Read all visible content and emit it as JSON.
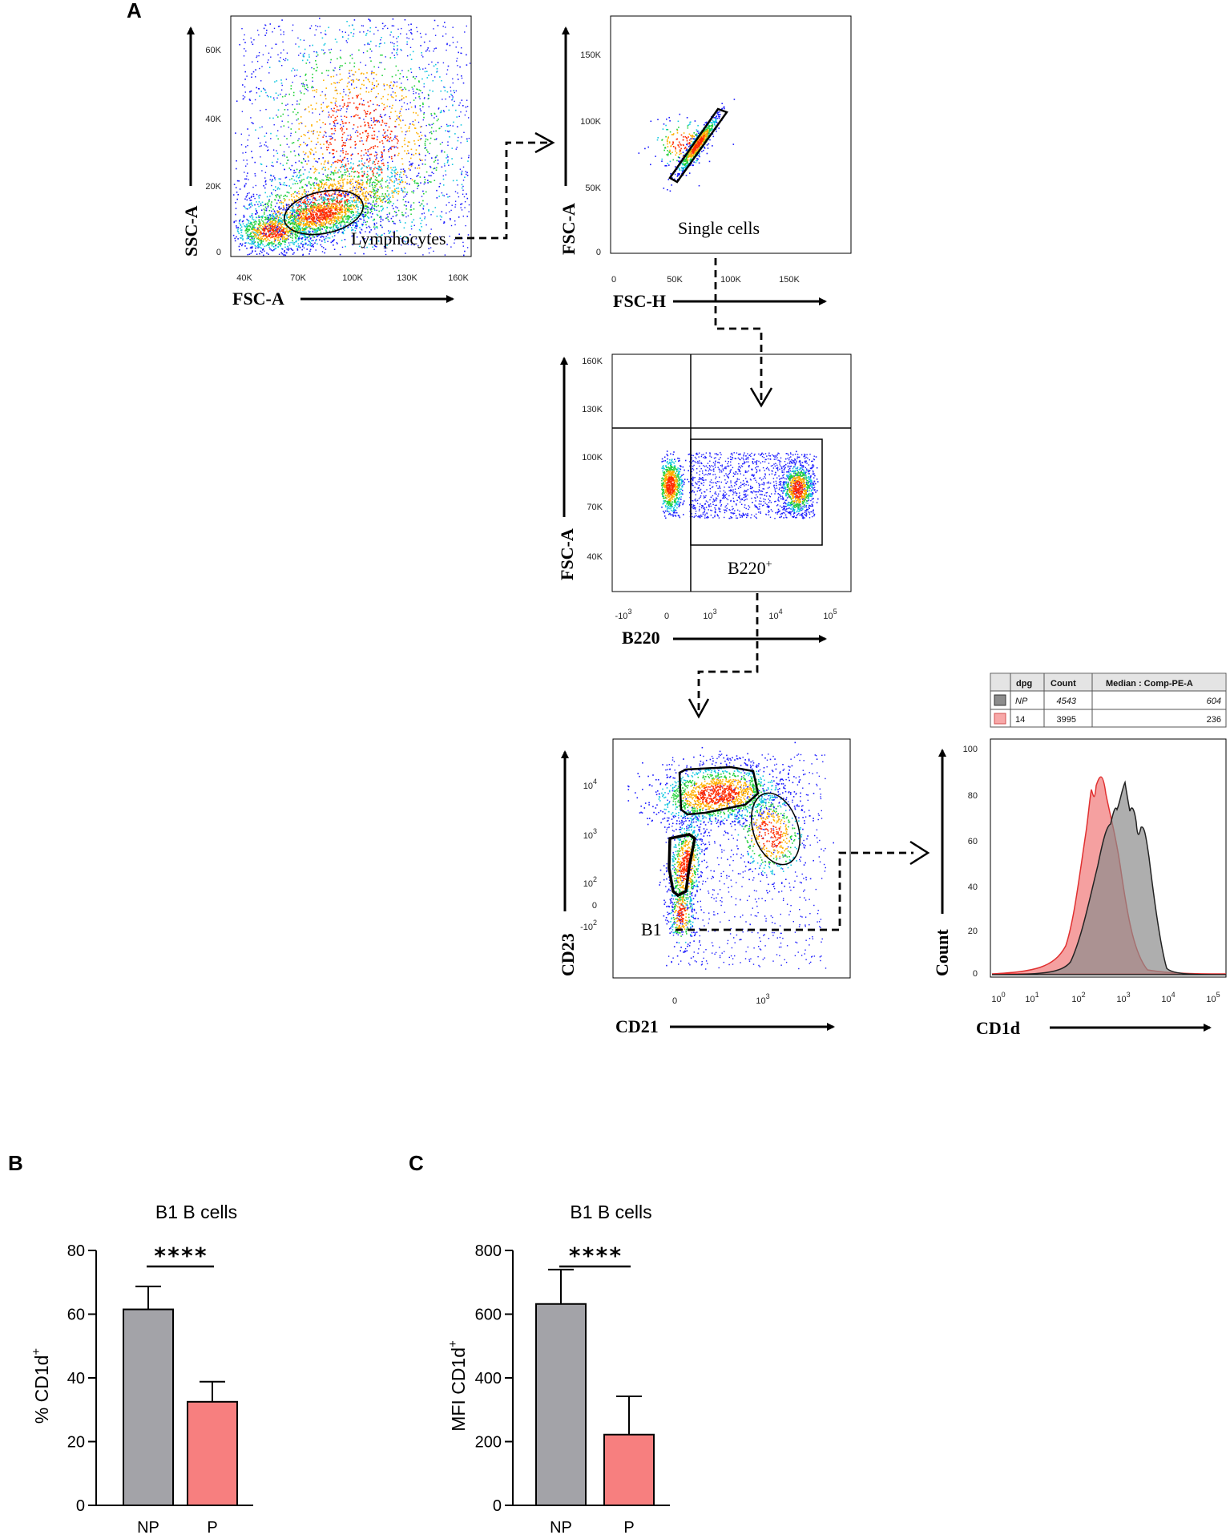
{
  "colors": {
    "np_bar": "#a3a3a8",
    "p_bar": "#f77f7f",
    "hist_np": "#8c8c8c",
    "hist_p": "#f28080",
    "density_low": "#1a1aff",
    "density_mid": "#23d23c",
    "density_high": "#ff2b00"
  },
  "panel_a": {
    "letter": "A",
    "plots": {
      "lymph": {
        "xlabel": "FSC-A",
        "ylabel": "SSC-A",
        "xticks": [
          "40K",
          "70K",
          "100K",
          "130K",
          "160K"
        ],
        "yticks": [
          "0",
          "20K",
          "40K",
          "60K"
        ],
        "gate": "Lymphocytes"
      },
      "single": {
        "xlabel": "FSC-H",
        "ylabel": "FSC-A",
        "xticks": [
          "0",
          "50K",
          "100K",
          "150K"
        ],
        "yticks": [
          "0",
          "50K",
          "100K",
          "150K"
        ],
        "gate": "Single cells"
      },
      "b220": {
        "xlabel": "B220",
        "ylabel": "FSC-A",
        "xticks": [
          "-10",
          "0",
          "10",
          "10",
          "10"
        ],
        "xtick_exp": [
          "3",
          "",
          "3",
          "4",
          "5"
        ],
        "yticks": [
          "40K",
          "70K",
          "100K",
          "130K",
          "160K"
        ],
        "gate": "B220",
        "gate_sup": "+"
      },
      "cd21": {
        "xlabel": "CD21",
        "ylabel": "CD23",
        "xticks": [
          "0",
          "10"
        ],
        "xtick_exp": [
          "",
          "3"
        ],
        "yticks": [
          "-10",
          "0",
          "10",
          "10",
          "10"
        ],
        "ytick_exp": [
          "2",
          "",
          "2",
          "3",
          "4"
        ],
        "gate": "B1"
      }
    },
    "histogram": {
      "xlabel": "CD1d",
      "ylabel": "Count",
      "yticks": [
        "0",
        "20",
        "40",
        "60",
        "80",
        "100"
      ],
      "xticks": [
        "10",
        "10",
        "10",
        "10",
        "10",
        "10"
      ],
      "xtick_exp": [
        "0",
        "1",
        "2",
        "3",
        "4",
        "5"
      ],
      "table": {
        "headers": [
          "dpg",
          "Count",
          "Median : Comp-PE-A"
        ],
        "rows": [
          {
            "dpg": "NP",
            "count": "4543",
            "median": "604"
          },
          {
            "dpg": "14",
            "count": "3995",
            "median": "236"
          }
        ]
      }
    }
  },
  "chart_data": [
    {
      "panel": "B",
      "type": "bar",
      "title": "B1 B cells",
      "ylabel": "% CD1d",
      "ylabel_sup": "+",
      "categories": [
        "NP",
        "P"
      ],
      "values": [
        61.5,
        32.5
      ],
      "errors": [
        7.2,
        6.3
      ],
      "ylim": [
        0,
        80
      ],
      "yticks": [
        0,
        20,
        40,
        60,
        80
      ],
      "significance": "****"
    },
    {
      "panel": "C",
      "type": "bar",
      "title": "B1 B cells",
      "ylabel": "MFI CD1d",
      "ylabel_sup": "+",
      "categories": [
        "NP",
        "P"
      ],
      "values": [
        632,
        222
      ],
      "errors": [
        108,
        120
      ],
      "ylim": [
        0,
        800
      ],
      "yticks": [
        0,
        200,
        400,
        600,
        800
      ],
      "significance": "****"
    }
  ]
}
